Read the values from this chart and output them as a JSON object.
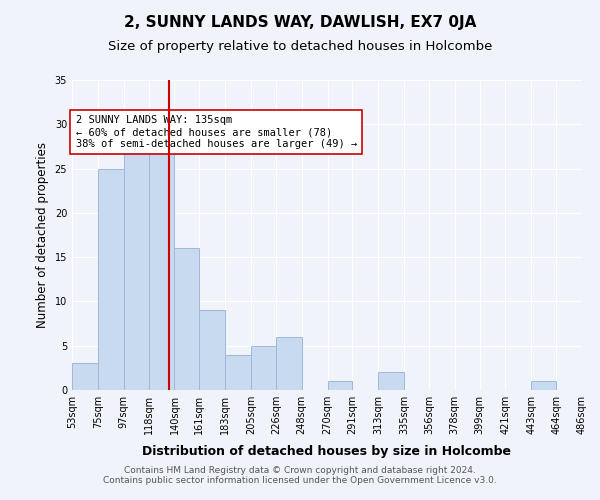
{
  "title": "2, SUNNY LANDS WAY, DAWLISH, EX7 0JA",
  "subtitle": "Size of property relative to detached houses in Holcombe",
  "xlabel": "Distribution of detached houses by size in Holcombe",
  "ylabel": "Number of detached properties",
  "bin_edges": [
    53,
    75,
    97,
    118,
    140,
    161,
    183,
    205,
    226,
    248,
    270,
    291,
    313,
    335,
    356,
    378,
    399,
    421,
    443,
    464,
    486
  ],
  "bin_labels": [
    "53sqm",
    "75sqm",
    "97sqm",
    "118sqm",
    "140sqm",
    "161sqm",
    "183sqm",
    "205sqm",
    "226sqm",
    "248sqm",
    "270sqm",
    "291sqm",
    "313sqm",
    "335sqm",
    "356sqm",
    "378sqm",
    "399sqm",
    "421sqm",
    "443sqm",
    "464sqm",
    "486sqm"
  ],
  "counts": [
    3,
    25,
    28,
    29,
    16,
    9,
    4,
    5,
    6,
    0,
    1,
    0,
    2,
    0,
    0,
    0,
    0,
    0,
    1,
    0
  ],
  "bar_color": "#c8daf0",
  "bar_edge_color": "#a0b8d8",
  "property_line_x": 135,
  "property_line_color": "#cc0000",
  "annotation_text": "2 SUNNY LANDS WAY: 135sqm\n← 60% of detached houses are smaller (78)\n38% of semi-detached houses are larger (49) →",
  "annotation_box_color": "#ffffff",
  "annotation_box_edge_color": "#cc0000",
  "ylim": [
    0,
    35
  ],
  "yticks": [
    0,
    5,
    10,
    15,
    20,
    25,
    30,
    35
  ],
  "footer_text": "Contains HM Land Registry data © Crown copyright and database right 2024.\nContains public sector information licensed under the Open Government Licence v3.0.",
  "title_fontsize": 11,
  "subtitle_fontsize": 9.5,
  "xlabel_fontsize": 9,
  "ylabel_fontsize": 8.5,
  "tick_fontsize": 7,
  "annotation_fontsize": 7.5,
  "footer_fontsize": 6.5,
  "background_color": "#f0f4fa"
}
